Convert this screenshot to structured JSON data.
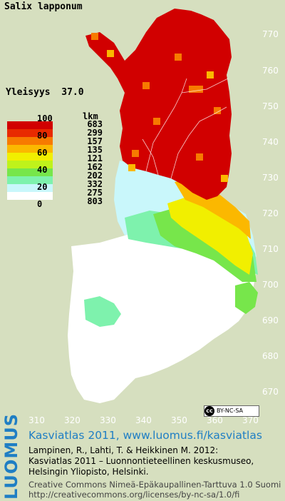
{
  "species": "Salix lapponum",
  "frequency": {
    "label": "Yleisyys",
    "value": "37.0"
  },
  "legend": {
    "count_header": "lkm",
    "scale_labels": [
      "100",
      "80",
      "60",
      "40",
      "20",
      "0"
    ],
    "bins": [
      {
        "color": "#d10000",
        "count": "683"
      },
      {
        "color": "#e82a00",
        "count": "299"
      },
      {
        "color": "#f77a00",
        "count": "157"
      },
      {
        "color": "#fbb800",
        "count": "135"
      },
      {
        "color": "#f1ef00",
        "count": "121"
      },
      {
        "color": "#bff21b",
        "count": "162"
      },
      {
        "color": "#77e64b",
        "count": "202"
      },
      {
        "color": "#7ef2ad",
        "count": "332"
      },
      {
        "color": "#c9f7fb",
        "count": "275"
      },
      {
        "color": "#ffffff",
        "count": "803"
      }
    ]
  },
  "axes": {
    "y_ticks": [
      "770",
      "760",
      "750",
      "740",
      "730",
      "720",
      "710",
      "700",
      "690",
      "680",
      "670"
    ],
    "x_ticks": [
      "310",
      "320",
      "330",
      "340",
      "350",
      "360",
      "370"
    ]
  },
  "license_badge": {
    "cc": "cc",
    "text": "BY-NC-SA"
  },
  "logo": "LUOMUS",
  "site_title": "Kasviatlas 2011, www.luomus.fi/kasviatlas",
  "citation": [
    "Lampinen, R., Lahti, T. & Heikkinen M. 2012:",
    "Kasviatlas 2011 – Luonnontieteellinen keskusmuseo,",
    "Helsingin Yliopisto, Helsinki."
  ],
  "license": [
    "Creative Commons Nimeä-Epäkaupallinen-Tarttuva 1.0 Suomi",
    "http://creativecommons.org/licenses/by-nc-sa/1.0/fi"
  ]
}
